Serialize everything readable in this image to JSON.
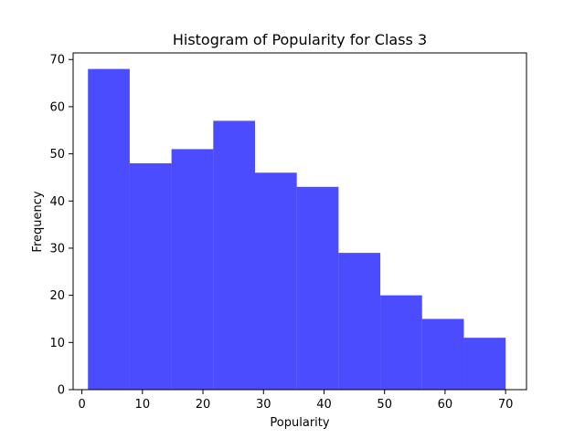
{
  "chart_data": {
    "type": "bar",
    "title": "Histogram of Popularity for Class 3",
    "xlabel": "Popularity",
    "ylabel": "Frequency",
    "xlim": [
      -1.45,
      73.45
    ],
    "ylim": [
      0,
      71.4
    ],
    "xticks": [
      0,
      10,
      20,
      30,
      40,
      50,
      60,
      70
    ],
    "yticks": [
      0,
      10,
      20,
      30,
      40,
      50,
      60,
      70
    ],
    "bin_edges": [
      1,
      7.9,
      14.8,
      21.7,
      28.6,
      35.5,
      42.4,
      49.3,
      56.2,
      63.1,
      70
    ],
    "values": [
      68,
      48,
      51,
      57,
      46,
      43,
      29,
      20,
      15,
      11
    ],
    "bar_color": "#0000ff",
    "bar_opacity": 0.7,
    "grid": false,
    "legend": "none"
  }
}
